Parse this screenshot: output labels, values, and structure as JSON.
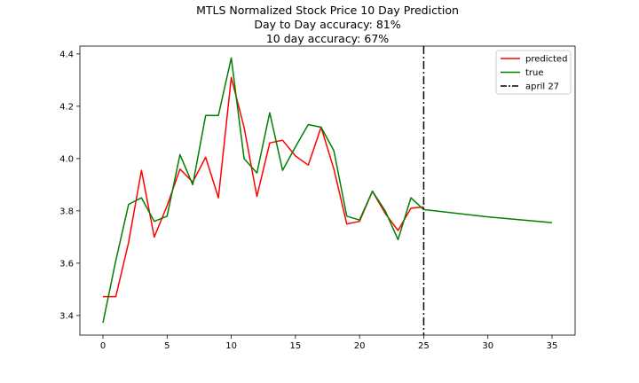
{
  "chart_data": {
    "type": "line",
    "title": "MTLS Normalized Stock Price 10 Day Prediction",
    "subtitle_lines": [
      "Day to Day accuracy: 81%",
      "10 day accuracy: 67%"
    ],
    "xlabel": "",
    "ylabel": "",
    "xlim": [
      -1.8,
      36.8
    ],
    "ylim": [
      3.325,
      4.43
    ],
    "xticks": [
      0,
      5,
      10,
      15,
      20,
      25,
      30,
      35
    ],
    "yticks": [
      3.4,
      3.6,
      3.8,
      4.0,
      4.2,
      4.4
    ],
    "ytick_labels": [
      "3.4",
      "3.6",
      "3.8",
      "4.0",
      "4.2",
      "4.4"
    ],
    "grid": false,
    "legend_position": "top-right",
    "series": [
      {
        "name": "predicted",
        "color": "#ff0000",
        "x": [
          0,
          1,
          2,
          3,
          4,
          5,
          6,
          7,
          8,
          9,
          10,
          11,
          12,
          13,
          14,
          15,
          16,
          17,
          18,
          19,
          20,
          21,
          22,
          23,
          24,
          25
        ],
        "y": [
          3.472,
          3.472,
          3.68,
          3.955,
          3.7,
          3.82,
          3.96,
          3.91,
          4.005,
          3.85,
          4.31,
          4.12,
          3.855,
          4.06,
          4.07,
          4.01,
          3.975,
          4.12,
          3.96,
          3.75,
          3.76,
          3.875,
          3.79,
          3.725,
          3.81,
          3.815
        ]
      },
      {
        "name": "true",
        "color": "#008000",
        "x": [
          0,
          1,
          2,
          3,
          4,
          5,
          6,
          7,
          8,
          9,
          10,
          11,
          12,
          13,
          14,
          15,
          16,
          17,
          18,
          19,
          20,
          21,
          22,
          23,
          24,
          25,
          30,
          35
        ],
        "y": [
          3.372,
          3.61,
          3.825,
          3.85,
          3.76,
          3.78,
          4.015,
          3.9,
          4.165,
          4.165,
          4.385,
          4.0,
          3.945,
          4.175,
          3.955,
          4.045,
          4.13,
          4.12,
          4.03,
          3.78,
          3.765,
          3.875,
          3.8,
          3.69,
          3.85,
          3.805,
          3.777,
          3.755
        ]
      }
    ],
    "annotations": [
      {
        "type": "vline",
        "x": 25,
        "label": "april 27",
        "style": "dashdot",
        "color": "#000000"
      }
    ]
  }
}
